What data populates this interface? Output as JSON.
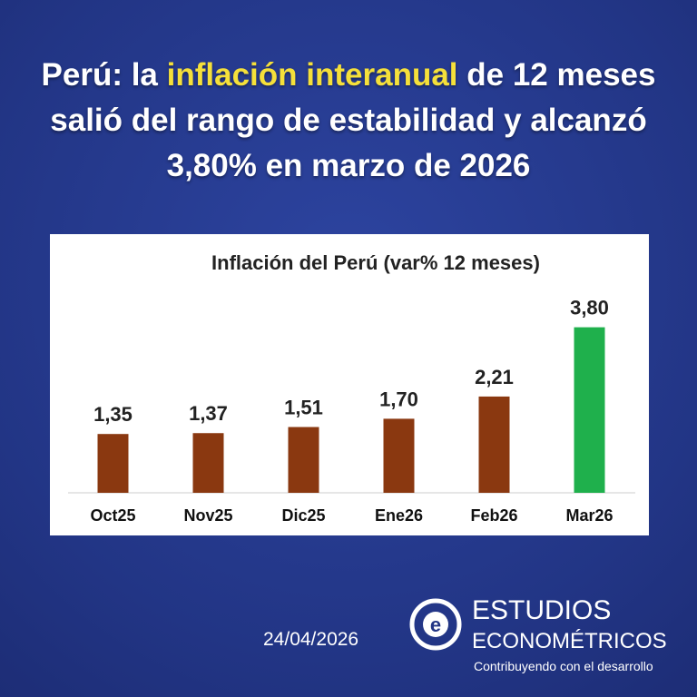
{
  "header": {
    "title_parts": [
      "Perú: la",
      "inflación interanual",
      "de 12 meses salió del rango de estabilidad y alcanzó 3,80% en marzo de 2026"
    ]
  },
  "chart_data": {
    "type": "bar",
    "title": "Inflación del Perú (var% 12 meses)",
    "categories": [
      "Oct25",
      "Nov25",
      "Dic25",
      "Ene26",
      "Feb26",
      "Mar26"
    ],
    "values": [
      1.35,
      1.37,
      1.51,
      1.7,
      2.21,
      3.8
    ],
    "value_labels": [
      "1,35",
      "1,37",
      "1,51",
      "1,70",
      "2,21",
      "3,80"
    ],
    "colors": [
      "#8a3810",
      "#8a3810",
      "#8a3810",
      "#8a3810",
      "#8a3810",
      "#1fb04c"
    ],
    "ylim": [
      0,
      4
    ]
  },
  "footer": {
    "date": "24/04/2026",
    "brand_line1": "ESTUDIOS",
    "brand_line2": "ECONOMÉTRICOS",
    "tagline": "Contribuyendo con el desarrollo"
  }
}
